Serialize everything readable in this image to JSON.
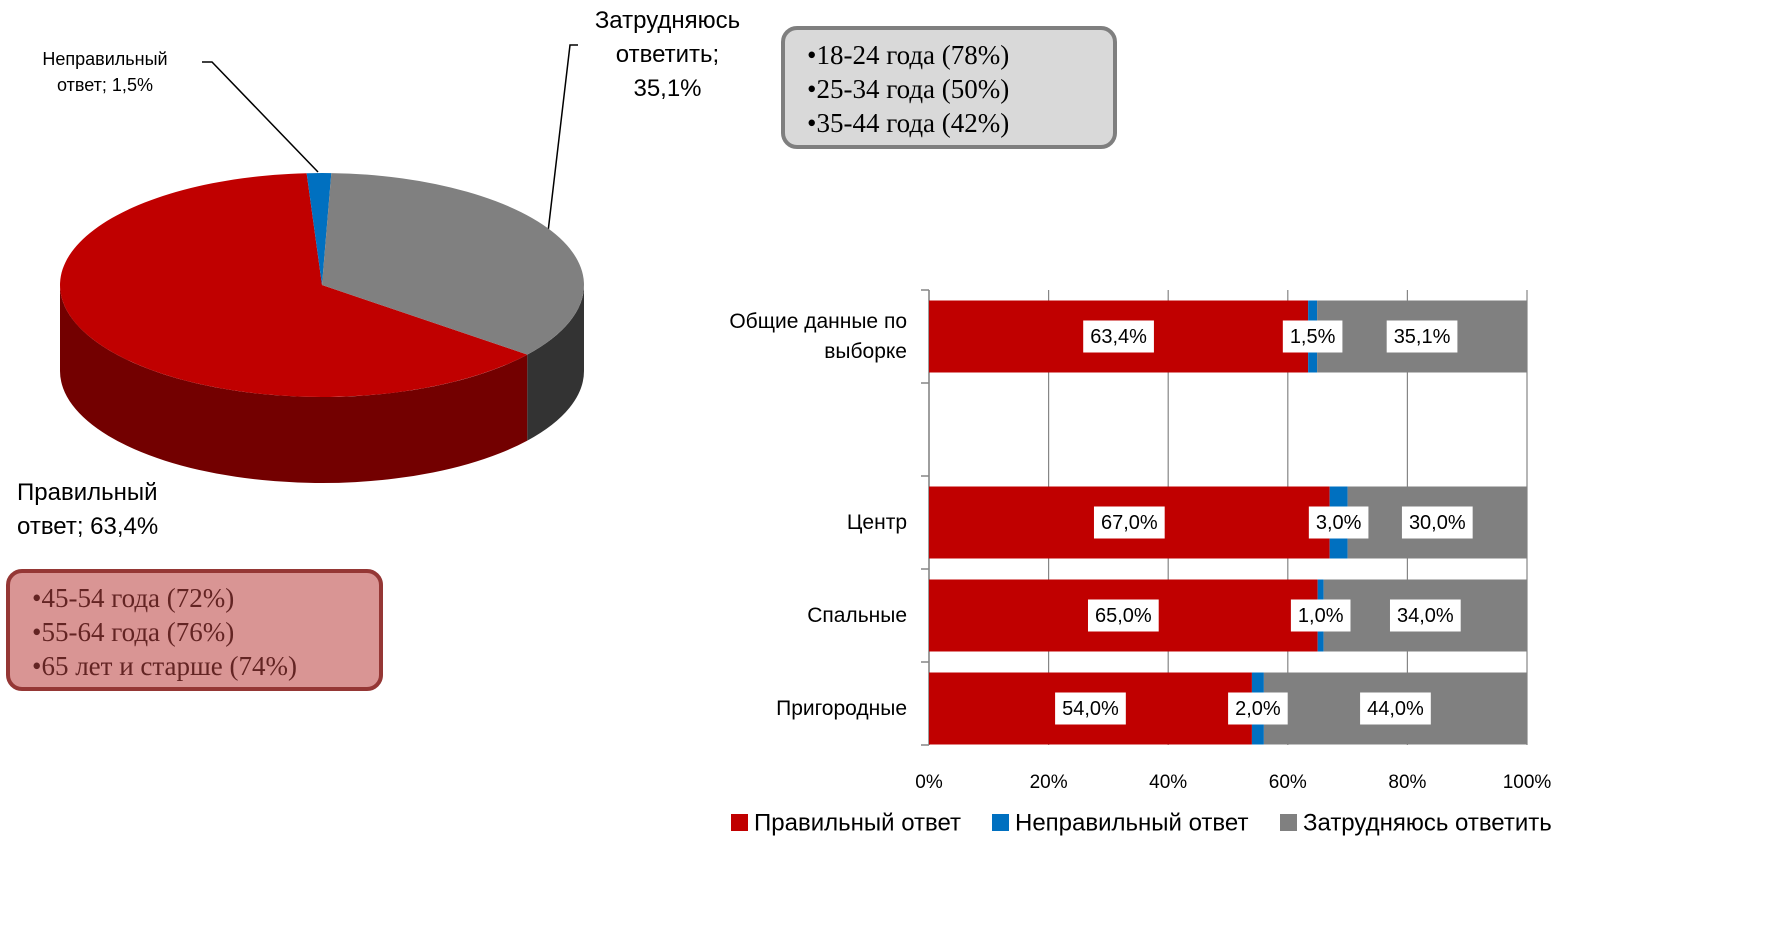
{
  "chart_data": [
    {
      "type": "pie",
      "values": [
        63.4,
        1.5,
        35.1
      ],
      "value_labels": [
        "Правильный ответ; 63,4%",
        "Неправильный ответ; 1,5%",
        "Затрудняюсь ответить; 35,1%"
      ],
      "colors": [
        "#c00000",
        "#0070c0",
        "#808080"
      ],
      "annotations": [
        [
          "•18-24 года (78%)",
          "•25-34 года (50%)",
          "•35-44 года (42%)"
        ],
        [
          "•45-54 года (72%)",
          "•55-64 года (76%)",
          "•65 лет и старше (74%)"
        ]
      ]
    },
    {
      "type": "stacked_bar_horizontal",
      "categories": [
        "Общие данные по выборке",
        null,
        "Центр",
        "Спальные",
        "Пригородные"
      ],
      "series": [
        {
          "name": "Правильный ответ",
          "color": "#c00000",
          "values": [
            63.4,
            null,
            67.0,
            65.0,
            54.0
          ],
          "value_labels": [
            "63,4%",
            null,
            "67,0%",
            "65,0%",
            "54,0%"
          ]
        },
        {
          "name": "Неправильный ответ",
          "color": "#0070c0",
          "values": [
            1.5,
            null,
            3.0,
            1.0,
            2.0
          ],
          "value_labels": [
            "1,5%",
            null,
            "3,0%",
            "1,0%",
            "2,0%"
          ]
        },
        {
          "name": "Затрудняюсь ответить",
          "color": "#808080",
          "values": [
            35.1,
            null,
            30.0,
            34.0,
            44.0
          ],
          "value_labels": [
            "35,1%",
            null,
            "30,0%",
            "34,0%",
            "44,0%"
          ]
        }
      ],
      "xlim": [
        0,
        100
      ],
      "xticks": [
        {
          "value": 0,
          "label": "0%"
        },
        {
          "value": 20,
          "label": "20%"
        },
        {
          "value": 40,
          "label": "40%"
        },
        {
          "value": 60,
          "label": "60%"
        },
        {
          "value": 80,
          "label": "80%"
        },
        {
          "value": 100,
          "label": "100%"
        }
      ],
      "grid": true,
      "legend": "bottom"
    }
  ]
}
